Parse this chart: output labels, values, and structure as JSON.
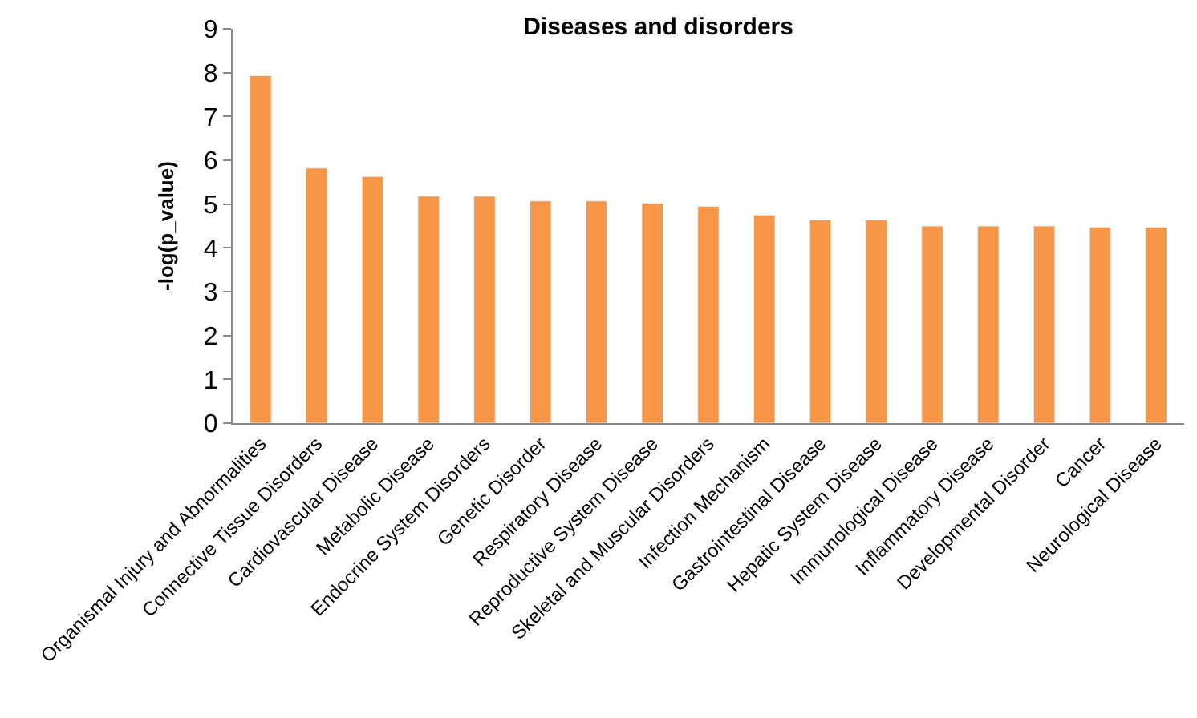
{
  "chart_data": {
    "type": "bar",
    "title": "Diseases and disorders",
    "ylabel": "-log(p_value)",
    "categories": [
      "Organismal Injury and Abnormalities",
      "Connective Tissue Disorders",
      "Cardiovascular Disease",
      "Metabolic Disease",
      "Endocrine System Disorders",
      "Genetic Disorder",
      "Respiratory Disease",
      "Reproductive System Disease",
      "Skeletal and Muscular Disorders",
      "Infection Mechanism",
      "Gastrointestinal Disease",
      "Hepatic System Disease",
      "Immunological Disease",
      "Inflammatory Disease",
      "Developmental Disorder",
      "Cancer",
      "Neurological Disease"
    ],
    "values": [
      7.93,
      5.82,
      5.63,
      5.18,
      5.18,
      5.07,
      5.07,
      5.02,
      4.95,
      4.75,
      4.64,
      4.64,
      4.5,
      4.5,
      4.5,
      4.47,
      4.47
    ],
    "color": "#f79646",
    "ylim": [
      0,
      9
    ],
    "yticks": [
      0,
      1,
      2,
      3,
      4,
      5,
      6,
      7,
      8,
      9
    ]
  }
}
